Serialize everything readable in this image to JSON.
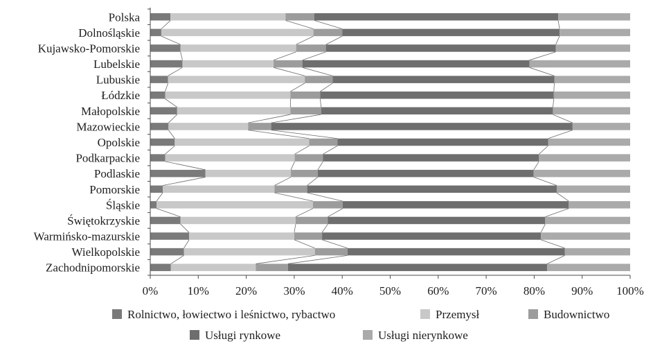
{
  "chart_data": {
    "type": "bar",
    "orientation": "horizontal",
    "stacked": true,
    "normalized": true,
    "categories": [
      "Polska",
      "Dolnośląskie",
      "Kujawsko-Pomorskie",
      "Lubelskie",
      "Lubuskie",
      "Łódzkie",
      "Małopolskie",
      "Mazowieckie",
      "Opolskie",
      "Podkarpackie",
      "Podlaskie",
      "Pomorskie",
      "Śląskie",
      "Świętokrzyskie",
      "Warmińsko-mazurskie",
      "Wielkopolskie",
      "Zachodnipomorskie"
    ],
    "xlim": [
      0,
      100
    ],
    "x_ticks": [
      "0%",
      "10%",
      "20%",
      "30%",
      "40%",
      "50%",
      "60%",
      "70%",
      "80%",
      "90%",
      "100%"
    ],
    "connector_lines": true,
    "legend_position": "bottom",
    "series": [
      {
        "name": "Rolnictwo, łowiectwo i leśnictwo, rybactwo",
        "color": "#7a7a7a",
        "values": [
          4.2,
          2.3,
          6.3,
          6.7,
          3.7,
          3.1,
          5.6,
          3.8,
          5.1,
          3.1,
          11.5,
          2.6,
          1.3,
          6.3,
          8.1,
          7.0,
          4.3
        ]
      },
      {
        "name": "Przemysł",
        "color": "#c8c8c8",
        "values": [
          24.0,
          31.7,
          24.1,
          19.0,
          28.5,
          26.1,
          23.6,
          16.6,
          28.0,
          27.0,
          17.8,
          23.3,
          32.6,
          24.0,
          21.9,
          27.3,
          17.7
        ]
      },
      {
        "name": "Budownictwo",
        "color": "#9c9c9c",
        "values": [
          6.0,
          6.0,
          6.2,
          6.0,
          5.8,
          6.2,
          6.4,
          4.8,
          5.9,
          5.9,
          5.6,
          6.8,
          6.2,
          6.7,
          5.8,
          6.8,
          6.7
        ]
      },
      {
        "name": "Usługi rynkowe",
        "color": "#6e6e6e",
        "values": [
          50.8,
          45.3,
          47.9,
          47.3,
          46.2,
          48.7,
          48.3,
          62.8,
          43.9,
          45.0,
          45.0,
          52.0,
          47.1,
          45.3,
          45.6,
          45.3,
          54.0
        ]
      },
      {
        "name": "Usługi nierynkowe",
        "color": "#aaaaaa",
        "values": [
          15.0,
          14.7,
          15.5,
          21.0,
          15.8,
          15.9,
          16.1,
          12.0,
          17.1,
          19.0,
          20.1,
          15.3,
          12.8,
          17.7,
          18.6,
          13.6,
          17.3
        ]
      }
    ]
  }
}
